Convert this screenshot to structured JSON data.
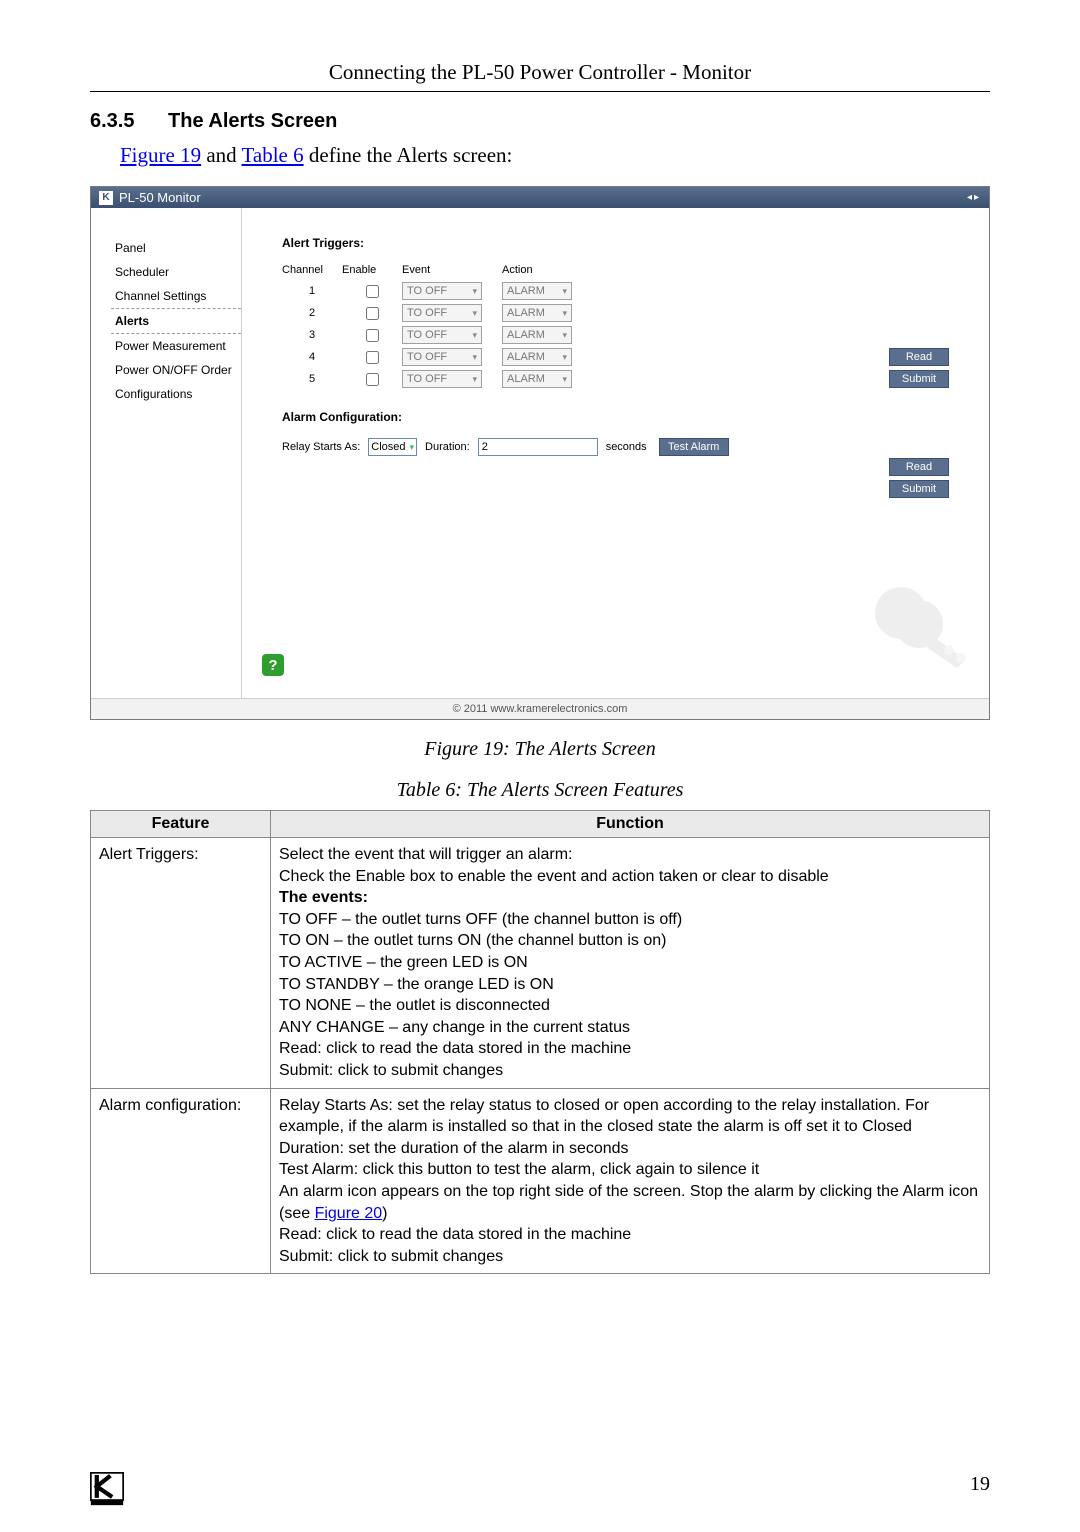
{
  "running_head": "Connecting the PL-50 Power Controller - Monitor",
  "section": {
    "number": "6.3.5",
    "title": "The Alerts Screen"
  },
  "intro": {
    "prefix": "",
    "link1": "Figure 19",
    "mid": " and ",
    "link2": "Table 6",
    "suffix": " define the Alerts screen:"
  },
  "app": {
    "title": "PL-50 Monitor",
    "nav": [
      "Panel",
      "Scheduler",
      "Channel Settings",
      "Alerts",
      "Power Measurement",
      "Power ON/OFF Order",
      "Configurations"
    ],
    "nav_selected_index": 3,
    "alert_triggers_label": "Alert Triggers:",
    "columns": {
      "channel": "Channel",
      "enable": "Enable",
      "event": "Event",
      "action": "Action"
    },
    "rows": [
      {
        "channel": "1",
        "enabled": false,
        "event": "TO OFF",
        "action": "ALARM"
      },
      {
        "channel": "2",
        "enabled": false,
        "event": "TO OFF",
        "action": "ALARM"
      },
      {
        "channel": "3",
        "enabled": false,
        "event": "TO OFF",
        "action": "ALARM"
      },
      {
        "channel": "4",
        "enabled": false,
        "event": "TO OFF",
        "action": "ALARM"
      },
      {
        "channel": "5",
        "enabled": false,
        "event": "TO OFF",
        "action": "ALARM"
      }
    ],
    "buttons": {
      "read": "Read",
      "submit": "Submit",
      "test_alarm": "Test Alarm"
    },
    "alarm_conf_label": "Alarm Configuration:",
    "relay_label": "Relay Starts As:",
    "relay_value": "Closed",
    "duration_label": "Duration:",
    "duration_value": "2",
    "seconds_label": "seconds",
    "footer": "© 2011 www.kramerelectronics.com"
  },
  "captions": {
    "figure": "Figure 19: The Alerts Screen",
    "table": "Table 6: The Alerts Screen Features"
  },
  "feature_table": {
    "headers": {
      "feature": "Feature",
      "function": "Function"
    },
    "rows": [
      {
        "feature": "Alert Triggers:",
        "lines": [
          "Select the event that will trigger an alarm:",
          "Check the Enable box to enable the event and action taken or clear to disable",
          "__BOLD__The events:",
          "TO OFF – the outlet turns OFF (the channel button is off)",
          "TO ON – the outlet turns ON (the channel button is on)",
          "TO ACTIVE – the green LED is ON",
          "TO STANDBY – the orange LED is ON",
          "TO NONE – the outlet is disconnected",
          "ANY CHANGE – any change in the current status",
          "Read: click to read the data stored in the machine",
          "Submit: click to submit changes"
        ]
      },
      {
        "feature": "Alarm configuration:",
        "lines": [
          "Relay Starts As: set the relay status to closed or open according to the relay installation. For example, if the alarm is installed so that in the closed state the alarm is off set it to Closed",
          "Duration: set the duration of the alarm in seconds",
          "Test Alarm: click this button to test the alarm, click again to silence it",
          "An alarm icon appears on the top right side of the screen. Stop the alarm by clicking the Alarm icon (see __LINK__Figure 20__/LINK__)",
          "Read: click to read the data stored in the machine",
          "Submit: click to submit changes"
        ]
      }
    ]
  },
  "page_number": "19",
  "colors": {
    "titlebar_top": "#5a6f8e",
    "titlebar_bottom": "#3b4f70",
    "button_bg": "#5a6f8e",
    "link": "#0000ee",
    "help_badge": "#2e9e2e",
    "table_header_bg": "#eaeaea",
    "table_border": "#888888"
  }
}
